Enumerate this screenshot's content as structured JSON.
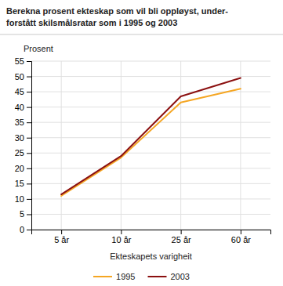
{
  "chart_data": {
    "type": "line",
    "title": "Berekna prosent ekteskap som vil bli oppløyst, under-\nforstått skilsmålsratar som i 1995 og 2003",
    "y_label": "Prosent",
    "x_label": "Ekteskapets varigheit",
    "categories": [
      "5 år",
      "10 år",
      "25 år",
      "60 år"
    ],
    "series": [
      {
        "name": "1995",
        "color": "#f5a623",
        "values": [
          11.0,
          23.5,
          41.5,
          46.0
        ]
      },
      {
        "name": "2003",
        "color": "#8b1010",
        "values": [
          11.5,
          24.0,
          43.5,
          49.5
        ]
      }
    ],
    "ylim": [
      0,
      55
    ],
    "yticks": [
      0,
      5,
      10,
      15,
      20,
      25,
      30,
      35,
      40,
      45,
      50,
      55
    ],
    "grid": true,
    "legend": "bottom"
  }
}
